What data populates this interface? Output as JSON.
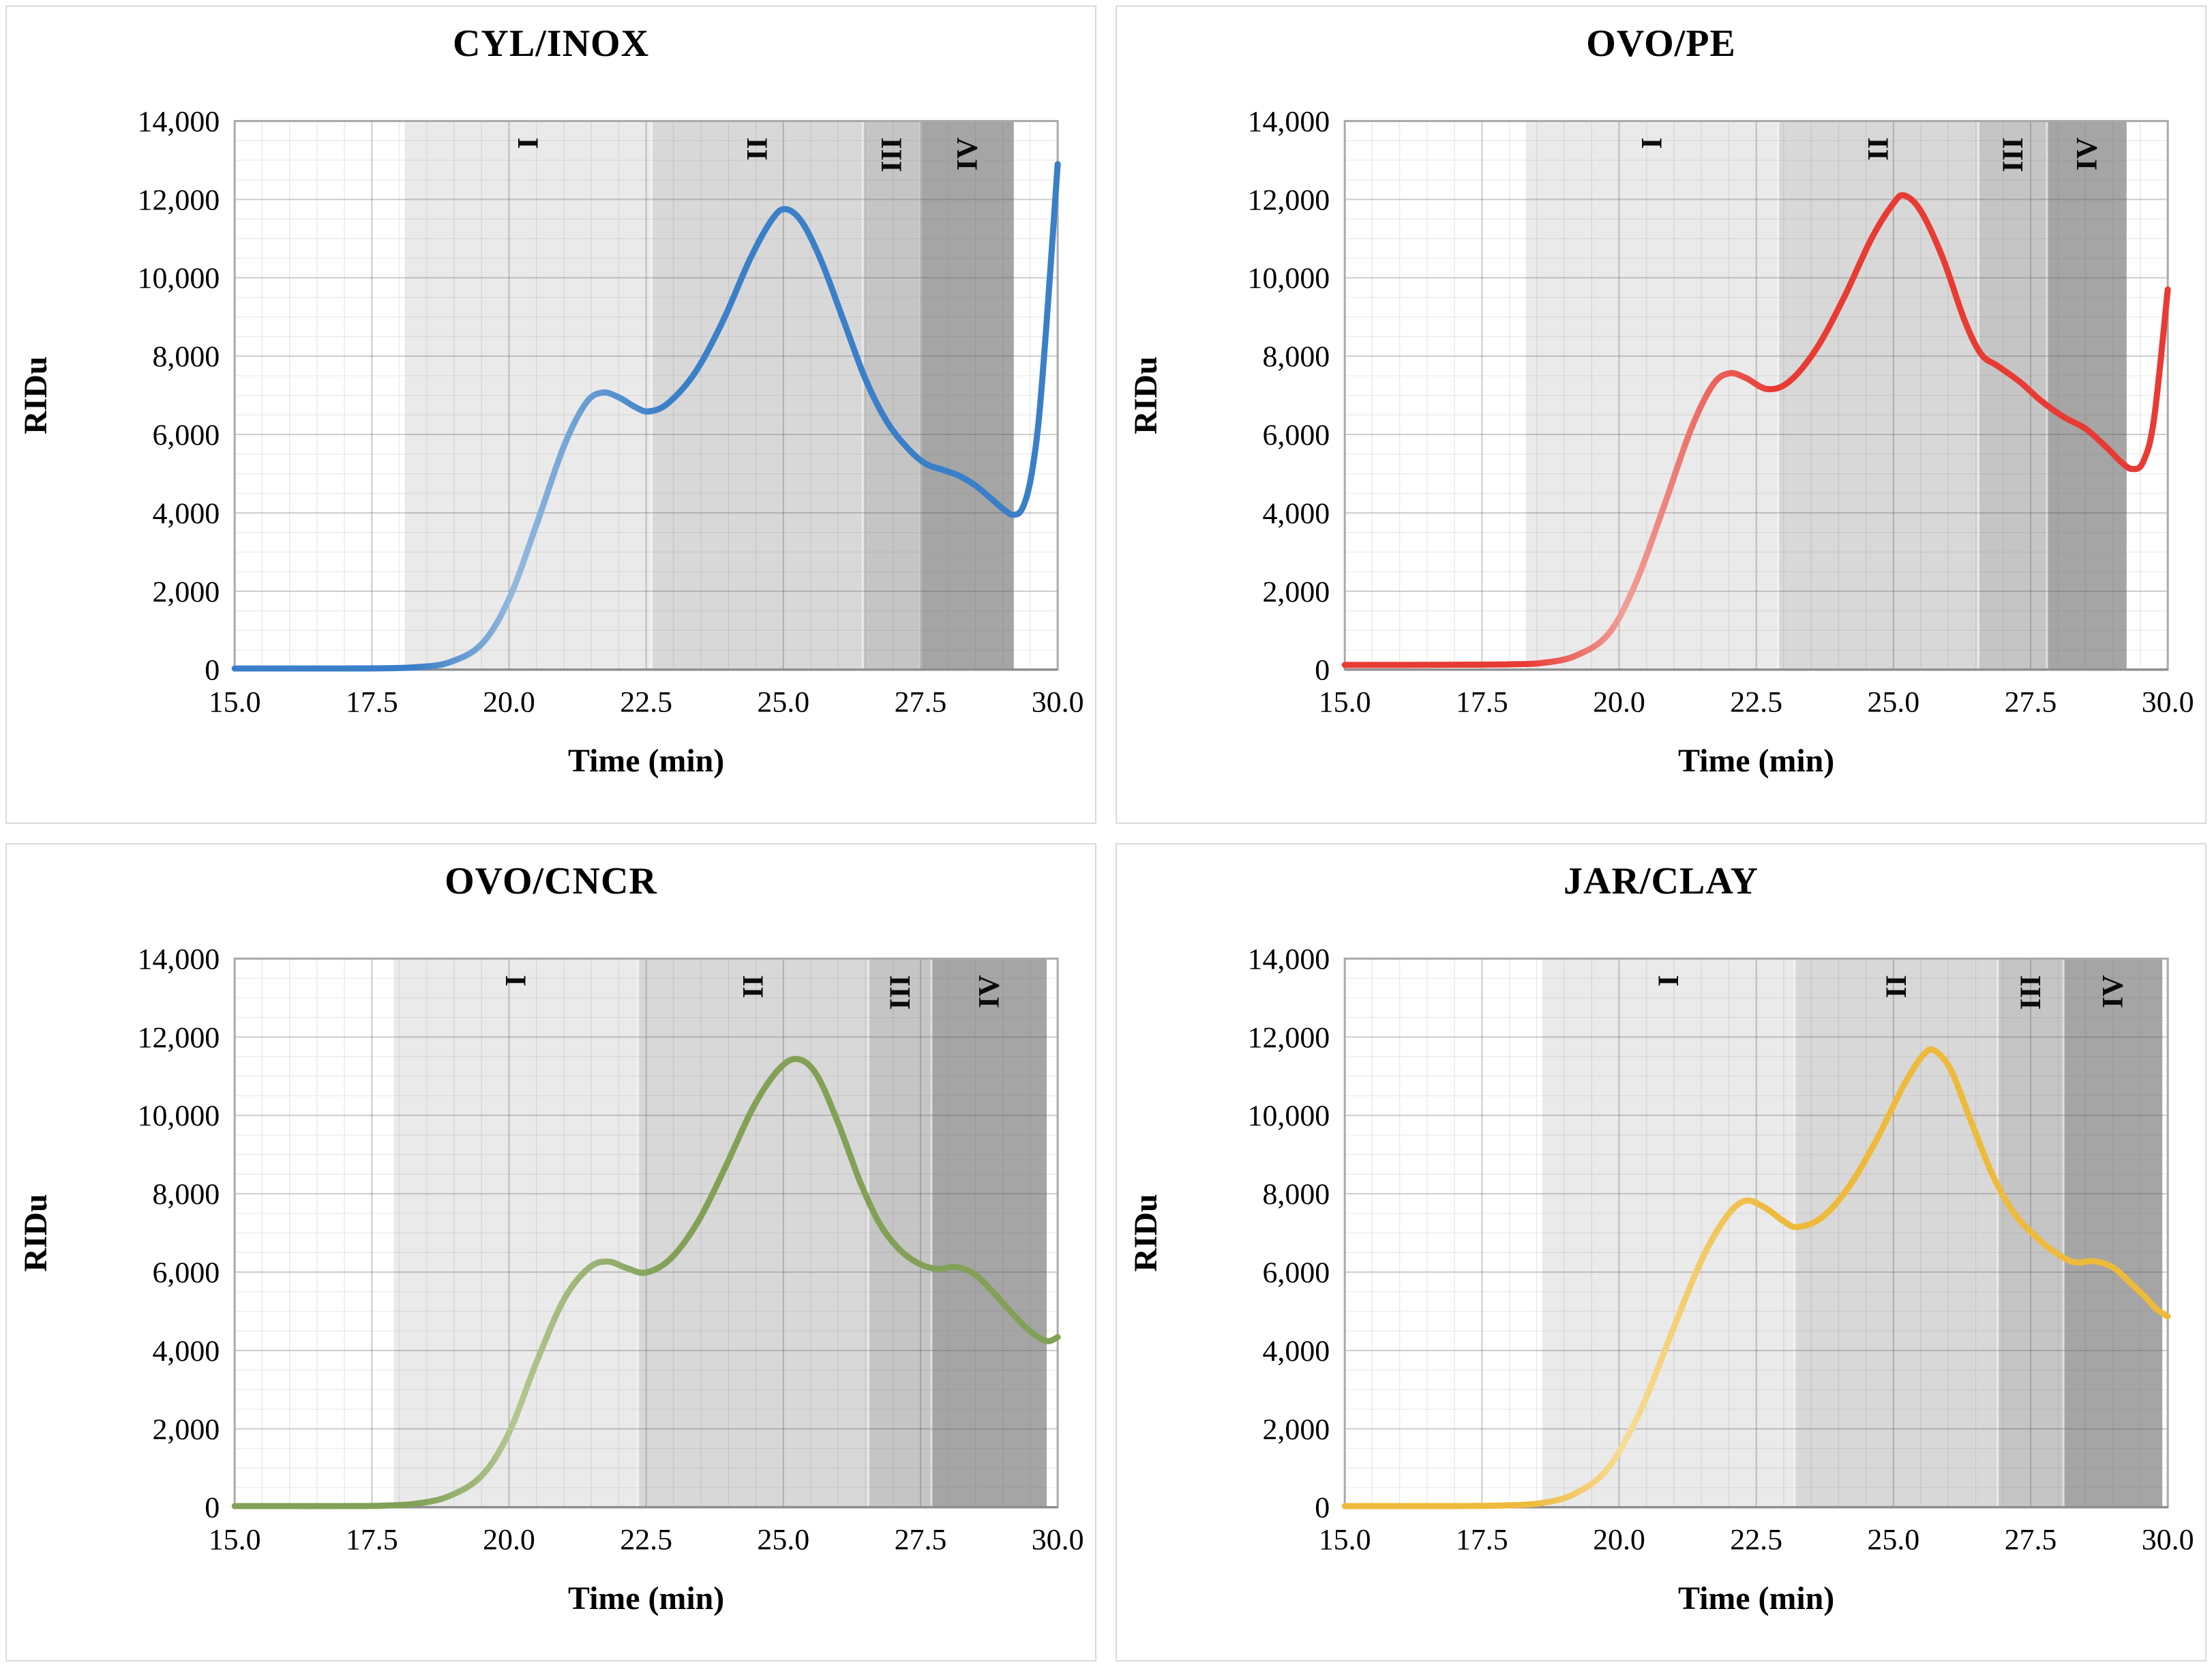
{
  "chart_defaults": {
    "xlabel": "Time (min)",
    "ylabel": "RIDu",
    "xlim": [
      15.0,
      30.0
    ],
    "ylim": [
      0,
      14000
    ],
    "x_tick_values": [
      15.0,
      17.5,
      20.0,
      22.5,
      25.0,
      27.5,
      30.0
    ],
    "x_tick_labels": [
      "15.0",
      "17.5",
      "20.0",
      "22.5",
      "25.0",
      "27.5",
      "30.0"
    ],
    "y_tick_values": [
      0,
      2000,
      4000,
      6000,
      8000,
      10000,
      12000,
      14000
    ],
    "y_tick_labels": [
      "0",
      "2,000",
      "4,000",
      "6,000",
      "8,000",
      "10,000",
      "12,000",
      "14,000"
    ],
    "x_minor_step": 0.5,
    "y_minor_step": 500,
    "grid": true,
    "legend": "none",
    "region_label_names": [
      "I",
      "II",
      "III",
      "IV"
    ]
  },
  "chart_data": [
    {
      "type": "line",
      "title": "CYL/INOX",
      "line_color": "#3a7fc8",
      "line_color_light": "#95b9dd",
      "regions": [
        {
          "label": "I",
          "from": 18.1,
          "to": 22.6,
          "fill": "#eaeaea"
        },
        {
          "label": "II",
          "from": 22.6,
          "to": 26.45,
          "fill": "#d8d8d8"
        },
        {
          "label": "III",
          "from": 26.45,
          "to": 27.5,
          "fill": "#c5c5c5"
        },
        {
          "label": "IV",
          "from": 27.5,
          "to": 29.2,
          "fill": "#a5a5a5"
        }
      ],
      "points": [
        [
          15,
          30
        ],
        [
          16,
          30
        ],
        [
          17,
          30
        ],
        [
          17.7,
          35
        ],
        [
          18.3,
          60
        ],
        [
          18.9,
          180
        ],
        [
          19.5,
          650
        ],
        [
          20,
          1800
        ],
        [
          20.5,
          3700
        ],
        [
          21,
          5700
        ],
        [
          21.4,
          6800
        ],
        [
          21.7,
          7070
        ],
        [
          22,
          6950
        ],
        [
          22.3,
          6700
        ],
        [
          22.55,
          6590
        ],
        [
          22.9,
          6800
        ],
        [
          23.4,
          7600
        ],
        [
          23.9,
          8900
        ],
        [
          24.4,
          10500
        ],
        [
          24.8,
          11500
        ],
        [
          25.05,
          11750
        ],
        [
          25.35,
          11400
        ],
        [
          25.7,
          10400
        ],
        [
          26.1,
          8900
        ],
        [
          26.5,
          7400
        ],
        [
          26.9,
          6300
        ],
        [
          27.3,
          5600
        ],
        [
          27.6,
          5250
        ],
        [
          27.9,
          5100
        ],
        [
          28.2,
          4950
        ],
        [
          28.5,
          4700
        ],
        [
          28.8,
          4350
        ],
        [
          29.05,
          4050
        ],
        [
          29.2,
          3950
        ],
        [
          29.35,
          4100
        ],
        [
          29.5,
          4800
        ],
        [
          29.65,
          6300
        ],
        [
          29.8,
          8900
        ],
        [
          30,
          12900
        ]
      ]
    },
    {
      "type": "line",
      "title": "OVO/PE",
      "line_color": "#e83b33",
      "line_color_light": "#f19e99",
      "regions": [
        {
          "label": "I",
          "from": 18.3,
          "to": 22.9,
          "fill": "#eaeaea"
        },
        {
          "label": "II",
          "from": 22.9,
          "to": 26.55,
          "fill": "#d8d8d8"
        },
        {
          "label": "III",
          "from": 26.55,
          "to": 27.8,
          "fill": "#c5c5c5"
        },
        {
          "label": "IV",
          "from": 27.8,
          "to": 29.25,
          "fill": "#a5a5a5"
        }
      ],
      "points": [
        [
          15,
          120
        ],
        [
          16,
          120
        ],
        [
          17,
          125
        ],
        [
          18,
          135
        ],
        [
          18.6,
          170
        ],
        [
          19.2,
          350
        ],
        [
          19.8,
          900
        ],
        [
          20.3,
          2200
        ],
        [
          20.8,
          4100
        ],
        [
          21.3,
          6100
        ],
        [
          21.7,
          7250
        ],
        [
          22,
          7560
        ],
        [
          22.3,
          7450
        ],
        [
          22.7,
          7160
        ],
        [
          23.1,
          7350
        ],
        [
          23.6,
          8200
        ],
        [
          24.1,
          9500
        ],
        [
          24.6,
          11000
        ],
        [
          25,
          11900
        ],
        [
          25.2,
          12100
        ],
        [
          25.5,
          11700
        ],
        [
          25.9,
          10500
        ],
        [
          26.3,
          8900
        ],
        [
          26.6,
          8050
        ],
        [
          26.9,
          7750
        ],
        [
          27.3,
          7350
        ],
        [
          27.7,
          6850
        ],
        [
          28.1,
          6450
        ],
        [
          28.5,
          6150
        ],
        [
          28.9,
          5650
        ],
        [
          29.15,
          5300
        ],
        [
          29.35,
          5120
        ],
        [
          29.55,
          5300
        ],
        [
          29.75,
          6400
        ],
        [
          30,
          9700
        ]
      ]
    },
    {
      "type": "line",
      "title": "OVO/CNCR",
      "line_color": "#82a157",
      "line_color_light": "#b3c791",
      "regions": [
        {
          "label": "I",
          "from": 17.9,
          "to": 22.35,
          "fill": "#eaeaea"
        },
        {
          "label": "II",
          "from": 22.35,
          "to": 26.55,
          "fill": "#d8d8d8"
        },
        {
          "label": "III",
          "from": 26.55,
          "to": 27.7,
          "fill": "#c5c5c5"
        },
        {
          "label": "IV",
          "from": 27.7,
          "to": 29.8,
          "fill": "#a5a5a5"
        }
      ],
      "points": [
        [
          15,
          30
        ],
        [
          16,
          30
        ],
        [
          17,
          30
        ],
        [
          17.7,
          40
        ],
        [
          18.3,
          90
        ],
        [
          18.9,
          280
        ],
        [
          19.5,
          800
        ],
        [
          20,
          1900
        ],
        [
          20.5,
          3700
        ],
        [
          21,
          5300
        ],
        [
          21.45,
          6100
        ],
        [
          21.8,
          6270
        ],
        [
          22.15,
          6100
        ],
        [
          22.5,
          5990
        ],
        [
          22.95,
          6350
        ],
        [
          23.45,
          7300
        ],
        [
          23.95,
          8700
        ],
        [
          24.45,
          10200
        ],
        [
          24.9,
          11150
        ],
        [
          25.25,
          11440
        ],
        [
          25.6,
          11050
        ],
        [
          26,
          9800
        ],
        [
          26.4,
          8300
        ],
        [
          26.75,
          7250
        ],
        [
          27.1,
          6600
        ],
        [
          27.45,
          6230
        ],
        [
          27.8,
          6080
        ],
        [
          28.15,
          6130
        ],
        [
          28.5,
          5930
        ],
        [
          28.85,
          5450
        ],
        [
          29.15,
          4980
        ],
        [
          29.45,
          4550
        ],
        [
          29.7,
          4300
        ],
        [
          29.85,
          4240
        ],
        [
          30,
          4340
        ]
      ]
    },
    {
      "type": "line",
      "title": "JAR/CLAY",
      "line_color": "#eeba3b",
      "line_color_light": "#f6dc95",
      "regions": [
        {
          "label": "I",
          "from": 18.6,
          "to": 23.2,
          "fill": "#eaeaea"
        },
        {
          "label": "II",
          "from": 23.2,
          "to": 26.9,
          "fill": "#d8d8d8"
        },
        {
          "label": "III",
          "from": 26.9,
          "to": 28.1,
          "fill": "#c5c5c5"
        },
        {
          "label": "IV",
          "from": 28.1,
          "to": 29.9,
          "fill": "#a5a5a5"
        }
      ],
      "points": [
        [
          15,
          30
        ],
        [
          16,
          30
        ],
        [
          17,
          30
        ],
        [
          17.9,
          45
        ],
        [
          18.6,
          110
        ],
        [
          19.2,
          350
        ],
        [
          19.8,
          1000
        ],
        [
          20.4,
          2500
        ],
        [
          21,
          4600
        ],
        [
          21.5,
          6300
        ],
        [
          21.95,
          7400
        ],
        [
          22.3,
          7820
        ],
        [
          22.65,
          7650
        ],
        [
          23,
          7300
        ],
        [
          23.25,
          7150
        ],
        [
          23.7,
          7400
        ],
        [
          24.2,
          8200
        ],
        [
          24.7,
          9400
        ],
        [
          25.2,
          10800
        ],
        [
          25.55,
          11550
        ],
        [
          25.75,
          11650
        ],
        [
          26.05,
          11150
        ],
        [
          26.4,
          9900
        ],
        [
          26.8,
          8500
        ],
        [
          27.2,
          7500
        ],
        [
          27.6,
          6900
        ],
        [
          27.95,
          6500
        ],
        [
          28.3,
          6250
        ],
        [
          28.65,
          6280
        ],
        [
          29,
          6120
        ],
        [
          29.3,
          5750
        ],
        [
          29.6,
          5350
        ],
        [
          29.8,
          5050
        ],
        [
          30,
          4870
        ]
      ]
    }
  ]
}
